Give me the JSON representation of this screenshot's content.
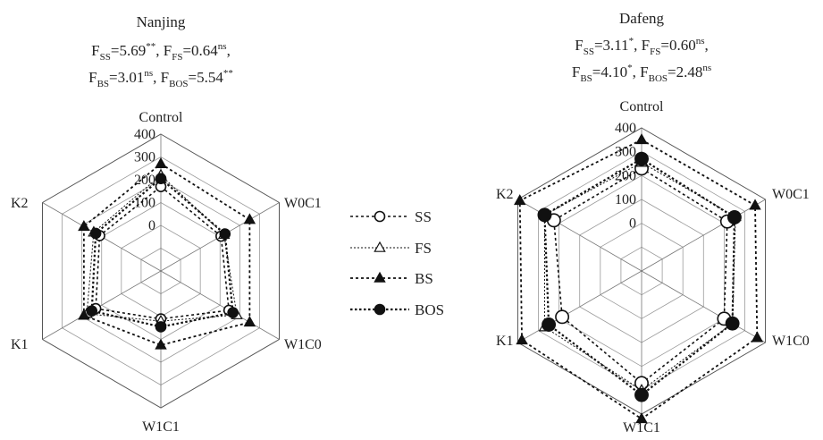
{
  "legend": [
    {
      "name": "SS",
      "marker": "circle-open"
    },
    {
      "name": "FS",
      "marker": "triangle-open"
    },
    {
      "name": "BS",
      "marker": "triangle-filled"
    },
    {
      "name": "BOS",
      "marker": "circle-filled"
    }
  ],
  "chart_data": [
    {
      "type": "radar",
      "title": "Nanjing",
      "stats": [
        [
          {
            "key": "SS",
            "value": "=5.69",
            "sig": "**"
          },
          {
            "key": "FS",
            "value": "=0.64",
            "sig": "ns"
          }
        ],
        [
          {
            "key": "BS",
            "value": "=3.01",
            "sig": "ns"
          },
          {
            "key": "BOS",
            "value": "=5.54",
            "sig": "**"
          }
        ]
      ],
      "axes": [
        "Control",
        "W0C1",
        "W1C0",
        "W1C1",
        "K1",
        "K2"
      ],
      "ticks": [
        "400",
        "300",
        "200",
        "100",
        "0"
      ],
      "r_range": [
        -200,
        400
      ],
      "series": [
        {
          "name": "SS",
          "values": [
            170,
            105,
            145,
            10,
            130,
            110
          ]
        },
        {
          "name": "FS",
          "values": [
            220,
            120,
            185,
            20,
            175,
            140
          ]
        },
        {
          "name": "BS",
          "values": [
            270,
            250,
            250,
            125,
            190,
            190
          ]
        },
        {
          "name": "BOS",
          "values": [
            205,
            125,
            165,
            45,
            150,
            130
          ]
        }
      ]
    },
    {
      "type": "radar",
      "title": "Dafeng",
      "stats": [
        [
          {
            "key": "SS",
            "value": "=3.11",
            "sig": "*"
          },
          {
            "key": "FS",
            "value": "=0.60",
            "sig": "ns"
          }
        ],
        [
          {
            "key": "BS",
            "value": "=4.10",
            "sig": "*"
          },
          {
            "key": "BOS",
            "value": "=2.48",
            "sig": "ns"
          }
        ]
      ],
      "axes": [
        "Control",
        "W0C1",
        "W1C0",
        "W1C1",
        "K1",
        "K2"
      ],
      "ticks": [
        "400",
        "300",
        "200",
        "100",
        "0"
      ],
      "r_range": [
        -200,
        400
      ],
      "series": [
        {
          "name": "SS",
          "values": [
            230,
            215,
            200,
            270,
            185,
            225
          ]
        },
        {
          "name": "FS",
          "values": [
            255,
            255,
            240,
            300,
            270,
            270
          ]
        },
        {
          "name": "BS",
          "values": [
            350,
            350,
            360,
            420,
            380,
            390
          ]
        },
        {
          "name": "BOS",
          "values": [
            270,
            250,
            240,
            320,
            250,
            270
          ]
        }
      ]
    }
  ]
}
